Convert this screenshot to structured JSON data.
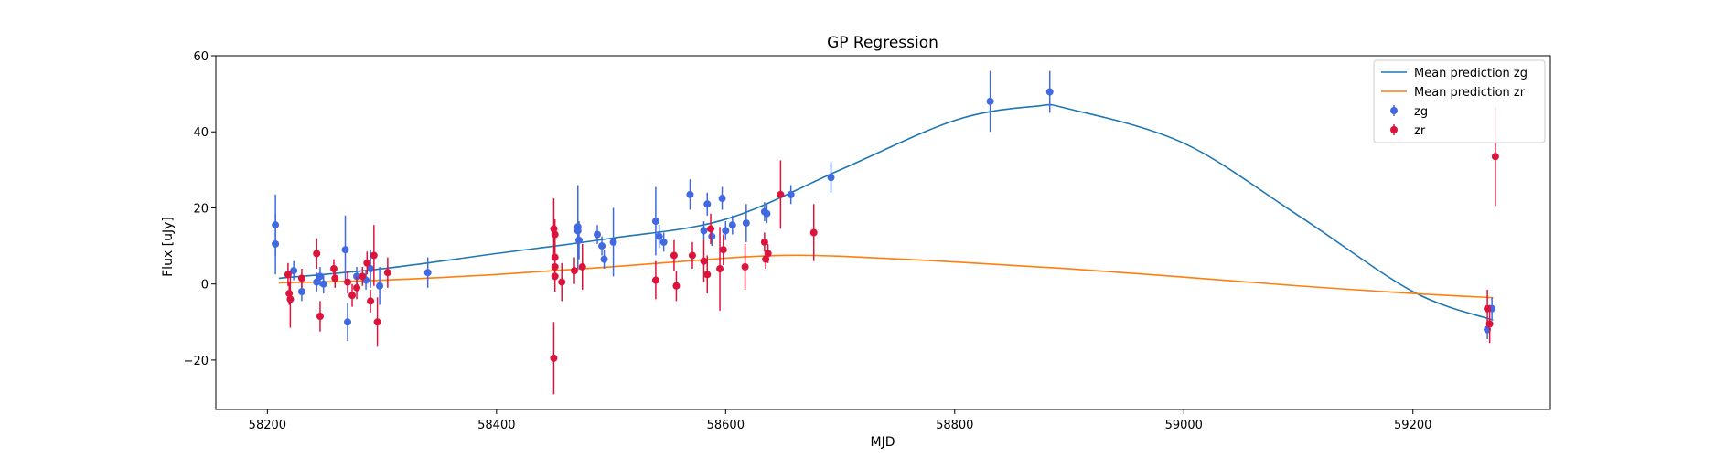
{
  "chart_data": {
    "type": "scatter",
    "title": "GP Regression",
    "xlabel": "MJD",
    "ylabel": "Flux [uJy]",
    "xlim": [
      58155,
      59320
    ],
    "ylim": [
      -33,
      60
    ],
    "xticks": [
      58200,
      58400,
      58600,
      58800,
      59000,
      59200
    ],
    "yticks": [
      -20,
      0,
      20,
      40,
      60
    ],
    "xtick_labels": [
      "58200",
      "58400",
      "58600",
      "58800",
      "59000",
      "59200"
    ],
    "ytick_labels": [
      "−20",
      "0",
      "20",
      "40",
      "60"
    ],
    "legend_position": "top-right",
    "grid": false,
    "lines": [
      {
        "name": "Mean prediction zg",
        "color": "#1f77b4",
        "x": [
          58210,
          58300,
          58400,
          58500,
          58600,
          58700,
          58800,
          58870,
          58900,
          59000,
          59100,
          59200,
          59270
        ],
        "y": [
          1.5,
          4.0,
          8.0,
          12.0,
          17.0,
          30.0,
          43.0,
          46.7,
          46.0,
          37.0,
          18.0,
          -2.0,
          -9.5
        ]
      },
      {
        "name": "Mean prediction zr",
        "color": "#ff7f0e",
        "x": [
          58210,
          58300,
          58400,
          58500,
          58600,
          58650,
          58700,
          58800,
          58900,
          59000,
          59100,
          59200,
          59270
        ],
        "y": [
          0.3,
          1.0,
          2.5,
          4.5,
          6.8,
          7.5,
          7.3,
          5.8,
          4.0,
          1.8,
          -0.5,
          -2.5,
          -3.6
        ]
      }
    ],
    "series": [
      {
        "name": "zg",
        "color": "#4169e1",
        "points": [
          {
            "x": 58207,
            "y": 15.5,
            "err": 8
          },
          {
            "x": 58207,
            "y": 10.5,
            "err": 8
          },
          {
            "x": 58223,
            "y": 3.5,
            "err": 2.5
          },
          {
            "x": 58230,
            "y": -2.0,
            "err": 2.5
          },
          {
            "x": 58243,
            "y": 0.5,
            "err": 2.5
          },
          {
            "x": 58246,
            "y": 2.0,
            "err": 2.5
          },
          {
            "x": 58249,
            "y": 0.0,
            "err": 2.5
          },
          {
            "x": 58268,
            "y": 9.0,
            "err": 9
          },
          {
            "x": 58270,
            "y": -10.0,
            "err": 5
          },
          {
            "x": 58278,
            "y": 2.0,
            "err": 2.5
          },
          {
            "x": 58286,
            "y": 1.0,
            "err": 2.5
          },
          {
            "x": 58290,
            "y": 4.0,
            "err": 5
          },
          {
            "x": 58298,
            "y": -0.5,
            "err": 5
          },
          {
            "x": 58340,
            "y": 3.0,
            "err": 4
          },
          {
            "x": 58471,
            "y": 15.0,
            "err": 11
          },
          {
            "x": 58471,
            "y": 14.0,
            "err": 5
          },
          {
            "x": 58472,
            "y": 11.5,
            "err": 5
          },
          {
            "x": 58488,
            "y": 13.0,
            "err": 2.5
          },
          {
            "x": 58492,
            "y": 10.0,
            "err": 2.5
          },
          {
            "x": 58494,
            "y": 6.5,
            "err": 2.5
          },
          {
            "x": 58502,
            "y": 11.0,
            "err": 9
          },
          {
            "x": 58539,
            "y": 16.5,
            "err": 9
          },
          {
            "x": 58542,
            "y": 12.5,
            "err": 3
          },
          {
            "x": 58546,
            "y": 11.0,
            "err": 2.5
          },
          {
            "x": 58569,
            "y": 23.5,
            "err": 4
          },
          {
            "x": 58581,
            "y": 14.0,
            "err": 2.5
          },
          {
            "x": 58584,
            "y": 21.0,
            "err": 3
          },
          {
            "x": 58588,
            "y": 12.5,
            "err": 2.5
          },
          {
            "x": 58597,
            "y": 22.5,
            "err": 3
          },
          {
            "x": 58600,
            "y": 14.0,
            "err": 2.5
          },
          {
            "x": 58606,
            "y": 15.5,
            "err": 2.5
          },
          {
            "x": 58618,
            "y": 16.0,
            "err": 5
          },
          {
            "x": 58634,
            "y": 19.0,
            "err": 2.5
          },
          {
            "x": 58636,
            "y": 18.5,
            "err": 2.5
          },
          {
            "x": 58657,
            "y": 23.5,
            "err": 2.5
          },
          {
            "x": 58692,
            "y": 28.0,
            "err": 4
          },
          {
            "x": 58831,
            "y": 48.0,
            "err": 8
          },
          {
            "x": 58883,
            "y": 50.5,
            "err": 5.5
          },
          {
            "x": 59265,
            "y": -12.0,
            "err": 2.5
          },
          {
            "x": 59269,
            "y": -6.5,
            "err": 3
          }
        ]
      },
      {
        "name": "zr",
        "color": "#dc143c",
        "points": [
          {
            "x": 58218,
            "y": 2.5,
            "err": 3
          },
          {
            "x": 58219,
            "y": -2.5,
            "err": 3
          },
          {
            "x": 58220,
            "y": -4.0,
            "err": 7.5
          },
          {
            "x": 58230,
            "y": 1.5,
            "err": 2.5
          },
          {
            "x": 58243,
            "y": 8.0,
            "err": 4
          },
          {
            "x": 58246,
            "y": -8.5,
            "err": 4
          },
          {
            "x": 58258,
            "y": 4.0,
            "err": 2.5
          },
          {
            "x": 58259,
            "y": 1.5,
            "err": 2.5
          },
          {
            "x": 58270,
            "y": 0.5,
            "err": 3
          },
          {
            "x": 58274,
            "y": -3.0,
            "err": 3
          },
          {
            "x": 58278,
            "y": -1.0,
            "err": 3
          },
          {
            "x": 58283,
            "y": 2.0,
            "err": 2.5
          },
          {
            "x": 58287,
            "y": 5.5,
            "err": 3
          },
          {
            "x": 58290,
            "y": -4.5,
            "err": 3
          },
          {
            "x": 58293,
            "y": 7.5,
            "err": 8
          },
          {
            "x": 58296,
            "y": -10.0,
            "err": 6.5
          },
          {
            "x": 58305,
            "y": 3.0,
            "err": 4
          },
          {
            "x": 58450,
            "y": 14.5,
            "err": 8
          },
          {
            "x": 58451,
            "y": 13.0,
            "err": 4
          },
          {
            "x": 58451,
            "y": 7.0,
            "err": 6
          },
          {
            "x": 58451,
            "y": 4.5,
            "err": 4
          },
          {
            "x": 58451,
            "y": 2.0,
            "err": 4
          },
          {
            "x": 58450,
            "y": -19.5,
            "err": 9.5
          },
          {
            "x": 58457,
            "y": 0.5,
            "err": 5
          },
          {
            "x": 58468,
            "y": 3.5,
            "err": 3.5
          },
          {
            "x": 58475,
            "y": 4.5,
            "err": 6
          },
          {
            "x": 58539,
            "y": 1.0,
            "err": 5
          },
          {
            "x": 58555,
            "y": 7.5,
            "err": 4
          },
          {
            "x": 58557,
            "y": -0.5,
            "err": 4
          },
          {
            "x": 58571,
            "y": 7.5,
            "err": 3.5
          },
          {
            "x": 58581,
            "y": 6.0,
            "err": 5.5
          },
          {
            "x": 58584,
            "y": 2.5,
            "err": 5
          },
          {
            "x": 58587,
            "y": 14.5,
            "err": 4
          },
          {
            "x": 58595,
            "y": 4.0,
            "err": 11
          },
          {
            "x": 58598,
            "y": 9.0,
            "err": 4
          },
          {
            "x": 58617,
            "y": 4.5,
            "err": 6
          },
          {
            "x": 58634,
            "y": 11.0,
            "err": 2.5
          },
          {
            "x": 58635,
            "y": 6.5,
            "err": 2.5
          },
          {
            "x": 58637,
            "y": 8.0,
            "err": 2.5
          },
          {
            "x": 58648,
            "y": 23.5,
            "err": 9
          },
          {
            "x": 58677,
            "y": 13.5,
            "err": 7.5
          },
          {
            "x": 59265,
            "y": -6.5,
            "err": 5
          },
          {
            "x": 59267,
            "y": -10.5,
            "err": 5
          },
          {
            "x": 59272,
            "y": 33.5,
            "err": 13
          }
        ]
      }
    ]
  }
}
